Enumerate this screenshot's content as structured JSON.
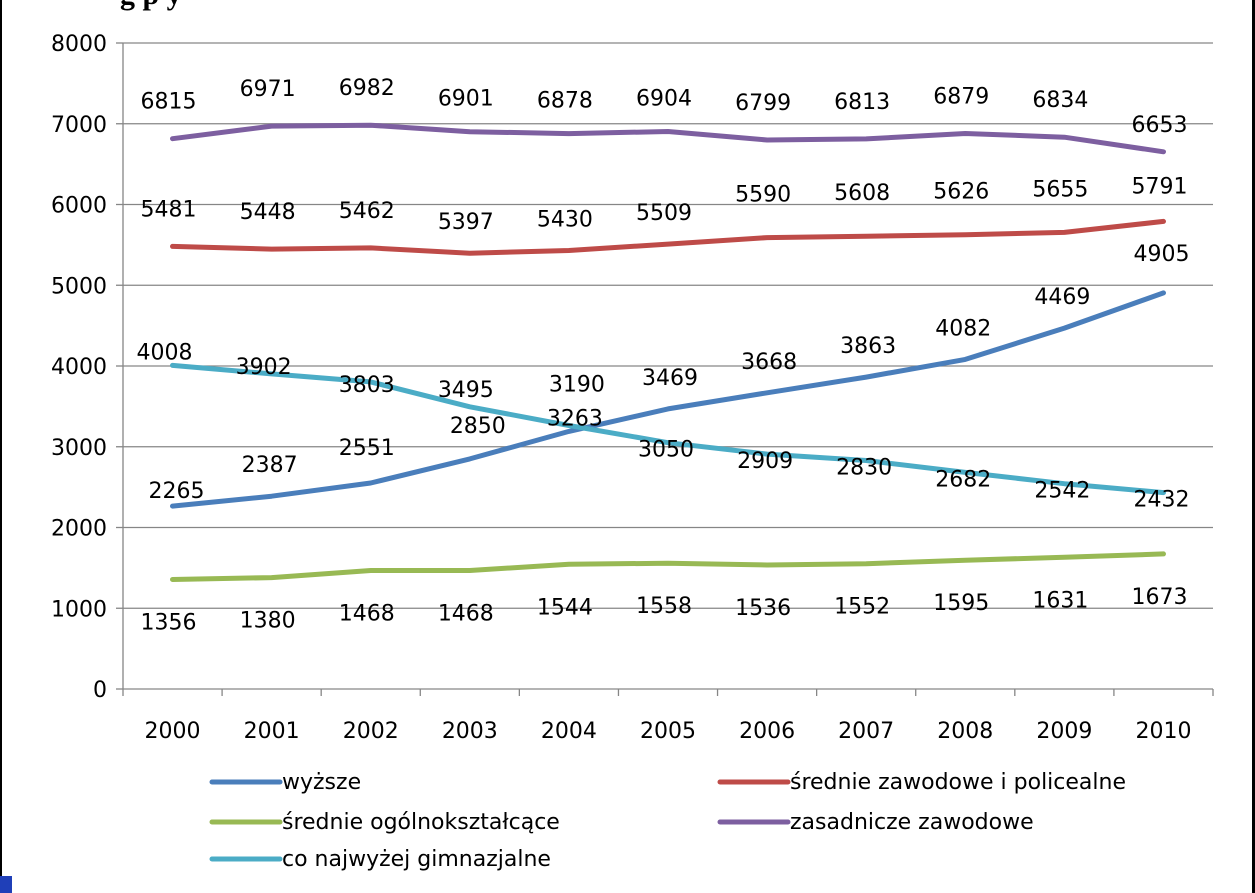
{
  "chart_data": {
    "type": "line",
    "title": "g p       y",
    "categories": [
      "2000",
      "2001",
      "2002",
      "2003",
      "2004",
      "2005",
      "2006",
      "2007",
      "2008",
      "2009",
      "2010"
    ],
    "ylim": [
      0,
      8000
    ],
    "yticks": [
      0,
      1000,
      2000,
      3000,
      4000,
      5000,
      6000,
      7000,
      8000
    ],
    "grid": true,
    "legend_position": "bottom",
    "series": [
      {
        "name": "wyższe",
        "color": "#4a7ebb",
        "values": [
          2265,
          2387,
          2551,
          2850,
          3190,
          3469,
          3668,
          3863,
          4082,
          4469,
          4905
        ]
      },
      {
        "name": "średnie zawodowe i policealne",
        "color": "#be4b48",
        "values": [
          5481,
          5448,
          5462,
          5397,
          5430,
          5509,
          5590,
          5608,
          5626,
          5655,
          5791
        ]
      },
      {
        "name": "średnie ogólnokształcące",
        "color": "#98b954",
        "values": [
          1356,
          1380,
          1468,
          1468,
          1544,
          1558,
          1536,
          1552,
          1595,
          1631,
          1673
        ]
      },
      {
        "name": "zasadnicze zawodowe",
        "color": "#7d5fa0",
        "values": [
          6815,
          6971,
          6982,
          6901,
          6878,
          6904,
          6799,
          6813,
          6879,
          6834,
          6653
        ]
      },
      {
        "name": "co najwyżej gimnazjalne",
        "color": "#4bacc6",
        "values": [
          4008,
          3902,
          3803,
          3495,
          3263,
          3050,
          2909,
          2830,
          2682,
          2542,
          2432
        ]
      }
    ]
  }
}
